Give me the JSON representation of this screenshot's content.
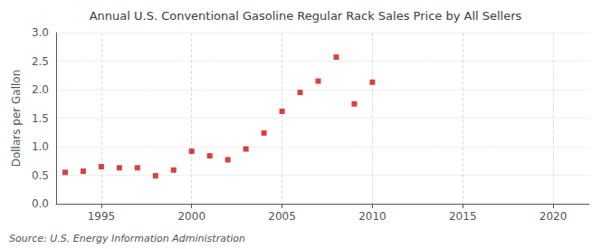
{
  "chart_data": {
    "type": "scatter",
    "title": "Annual U.S. Conventional Gasoline Regular Rack Sales Price by All Sellers",
    "ylabel": "Dollars per Gallon",
    "annotation": "Source: U.S. Energy Information Administration",
    "x": [
      1993,
      1994,
      1995,
      1996,
      1997,
      1998,
      1999,
      2000,
      2001,
      2002,
      2003,
      2004,
      2005,
      2006,
      2007,
      2008,
      2009,
      2010
    ],
    "values": [
      0.55,
      0.57,
      0.65,
      0.63,
      0.63,
      0.49,
      0.59,
      0.92,
      0.84,
      0.77,
      0.96,
      1.24,
      1.62,
      1.95,
      2.15,
      2.57,
      1.75,
      2.13
    ],
    "color": "#cc1111",
    "marker": "square",
    "xlim": [
      1992.5,
      2022
    ],
    "xticks": [
      1995,
      2000,
      2005,
      2010,
      2015,
      2020
    ],
    "ylim": [
      0.0,
      3.0
    ],
    "yticks": [
      {
        "value": 0.0,
        "label": "0.0"
      },
      0.5,
      {
        "value": 1.0,
        "label": "1.0"
      },
      1.5,
      {
        "value": 2.0,
        "label": "2.0"
      },
      2.5,
      {
        "value": 3.0,
        "label": "3.0"
      }
    ],
    "grid": true
  }
}
